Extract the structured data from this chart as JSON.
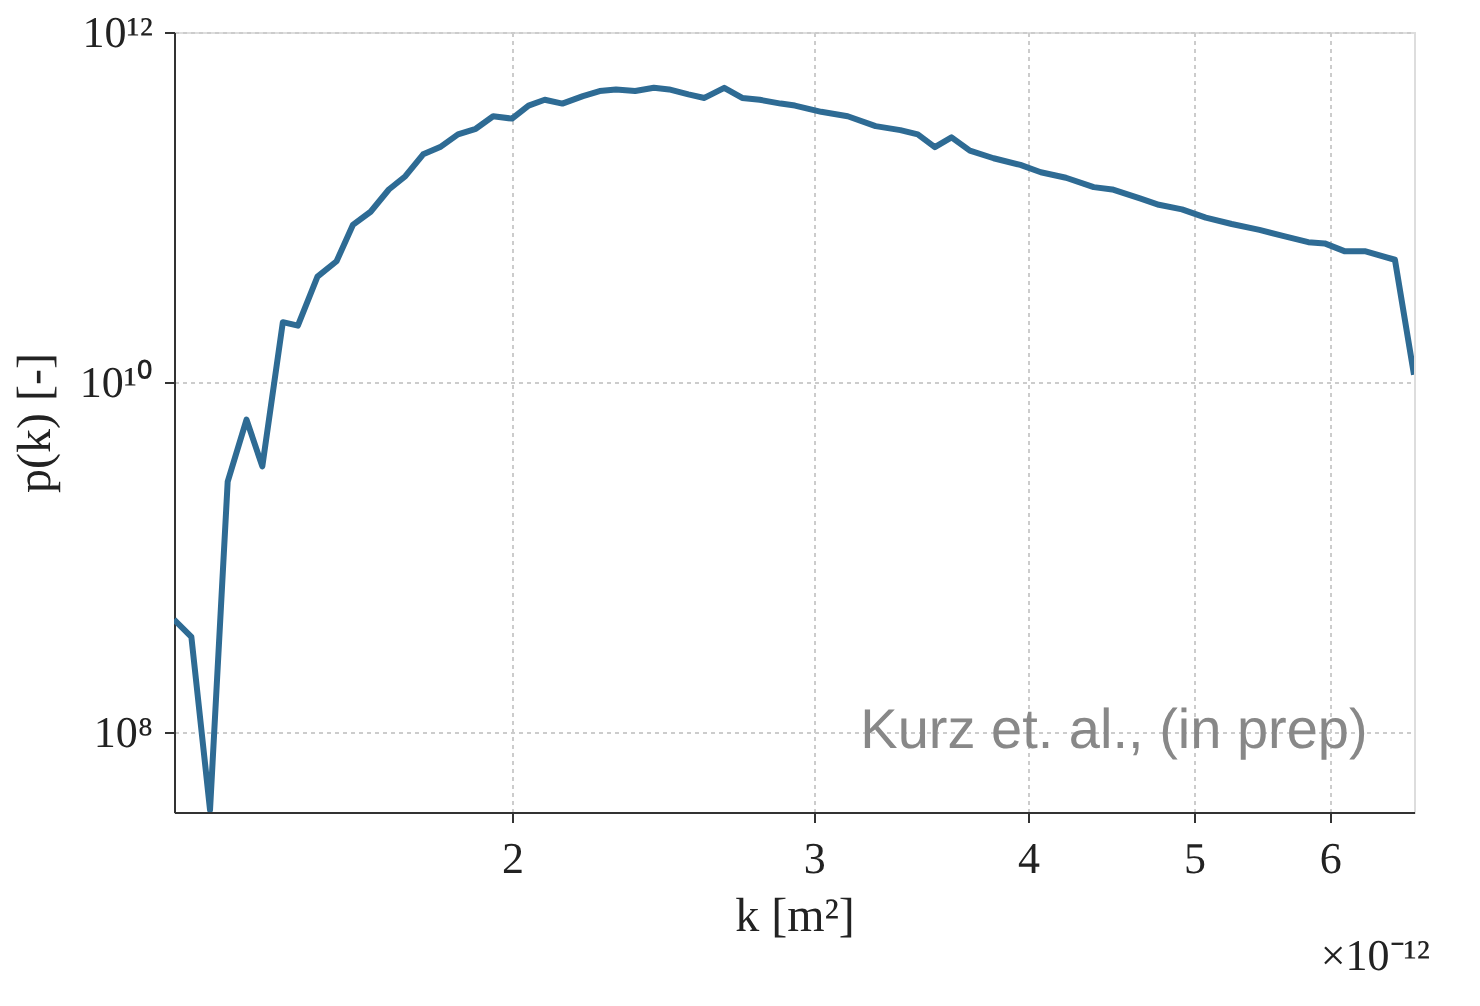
{
  "chart_data": {
    "type": "line",
    "xlabel": "k [m²]",
    "ylabel": "p(k) [-]",
    "annotations": [
      "Kurz et. al., (in prep)",
      "×10⁻¹²"
    ],
    "log": "xy",
    "grid": true,
    "xlim": [
      1.27,
      6.72
    ],
    "xticks": [
      2,
      3,
      4,
      5,
      6
    ],
    "ylim": [
      35000000,
      1000000000000
    ],
    "yticks": [
      {
        "value": 100000000,
        "label": "10⁸"
      },
      {
        "value": 10000000000,
        "label": "10¹⁰"
      },
      {
        "value": 1000000000000,
        "label": "10¹²"
      }
    ],
    "series": [
      {
        "color": "#2e6b94",
        "x": [
          1.27,
          1.3,
          1.333,
          1.365,
          1.4,
          1.43,
          1.47,
          1.5,
          1.54,
          1.58,
          1.615,
          1.654,
          1.695,
          1.733,
          1.775,
          1.816,
          1.86,
          1.905,
          1.95,
          2.0,
          2.045,
          2.09,
          2.14,
          2.2,
          2.25,
          2.3,
          2.36,
          2.42,
          2.47,
          2.535,
          2.59,
          2.66,
          2.725,
          2.79,
          2.87,
          2.925,
          3.03,
          3.14,
          3.26,
          3.37,
          3.45,
          3.53,
          3.61,
          3.7,
          3.82,
          3.96,
          4.07,
          4.21,
          4.37,
          4.48,
          4.65,
          4.77,
          4.92,
          5.08,
          5.26,
          5.46,
          5.65,
          5.83,
          5.96,
          6.12,
          6.29,
          6.55,
          6.72
        ],
        "values": [
          440000000.0,
          350000000.0,
          36000000.0,
          2700000000.0,
          6100000000.0,
          3300000000.0,
          22000000000.0,
          21000000000.0,
          40000000000.0,
          49000000000.0,
          79000000000.0,
          94000000000.0,
          126000000000.0,
          150000000000.0,
          200000000000.0,
          220000000000.0,
          260000000000.0,
          280000000000.0,
          330000000000.0,
          320000000000.0,
          380000000000.0,
          410000000000.0,
          390000000000.0,
          430000000000.0,
          460000000000.0,
          470000000000.0,
          460000000000.0,
          480000000000.0,
          470000000000.0,
          440000000000.0,
          420000000000.0,
          480000000000.0,
          420000000000.0,
          410000000000.0,
          390000000000.0,
          380000000000.0,
          350000000000.0,
          330000000000.0,
          290000000000.0,
          275000000000.0,
          260000000000.0,
          220000000000.0,
          250000000000.0,
          210000000000.0,
          190000000000.0,
          174000000000.0,
          158000000000.0,
          147000000000.0,
          130000000000.0,
          126000000000.0,
          112000000000.0,
          103000000000.0,
          97000000000.0,
          87000000000.0,
          80000000000.0,
          74000000000.0,
          68000000000.0,
          63000000000.0,
          62000000000.0,
          56000000000.0,
          56000000000.0,
          50000000000.0,
          11000000000.0
        ]
      }
    ]
  }
}
